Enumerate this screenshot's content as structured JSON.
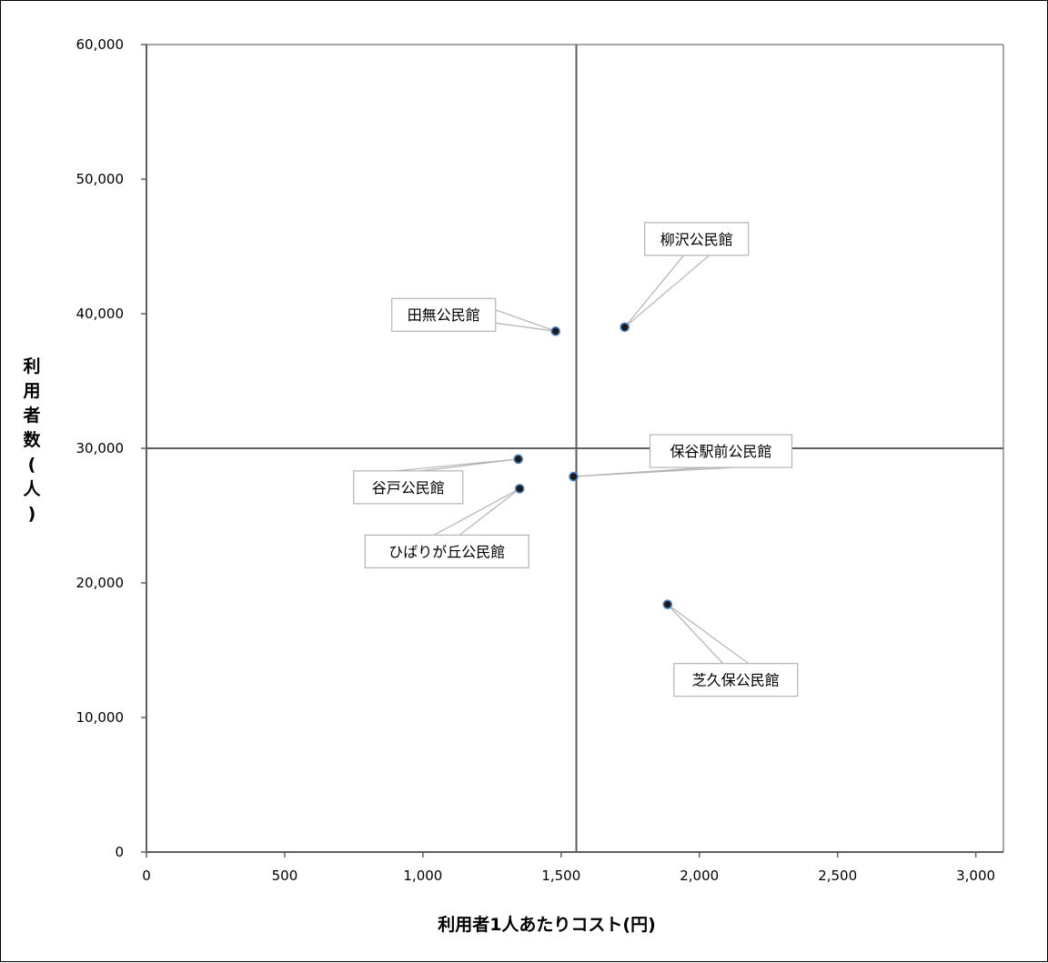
{
  "chart_data": {
    "type": "scatter",
    "title": "",
    "xlabel": "利用者1人あたりコスト(円)",
    "ylabel_chars": [
      "利",
      "用",
      "者",
      "数",
      "(",
      "人",
      ")"
    ],
    "xlim": [
      0,
      3100
    ],
    "ylim": [
      0,
      60000
    ],
    "x_ticks": [
      0,
      500,
      1000,
      1500,
      2000,
      2500,
      3000
    ],
    "x_tick_labels": [
      "0",
      "500",
      "1,000",
      "1,500",
      "2,000",
      "2,500",
      "3,000"
    ],
    "y_ticks": [
      0,
      10000,
      20000,
      30000,
      40000,
      50000,
      60000
    ],
    "y_tick_labels": [
      "0",
      "10,000",
      "20,000",
      "30,000",
      "40,000",
      "50,000",
      "60,000"
    ],
    "reference_lines": {
      "x": 1555,
      "y": 30000
    },
    "grid": false,
    "points": [
      {
        "label": "田無公民館",
        "x": 1480,
        "y": 38700
      },
      {
        "label": "柳沢公民館",
        "x": 1730,
        "y": 39000
      },
      {
        "label": "保谷駅前公民館",
        "x": 1545,
        "y": 27900
      },
      {
        "label": "谷戸公民館",
        "x": 1345,
        "y": 29200
      },
      {
        "label": "ひばりが丘公民館",
        "x": 1350,
        "y": 27000
      },
      {
        "label": "芝久保公民館",
        "x": 1885,
        "y": 18400
      }
    ],
    "colors": {
      "marker_fill": "#1a1a1a",
      "marker_edge": "#4f81bd",
      "axis": "#5f5f5f",
      "label_border": "#b3b3b3"
    }
  }
}
